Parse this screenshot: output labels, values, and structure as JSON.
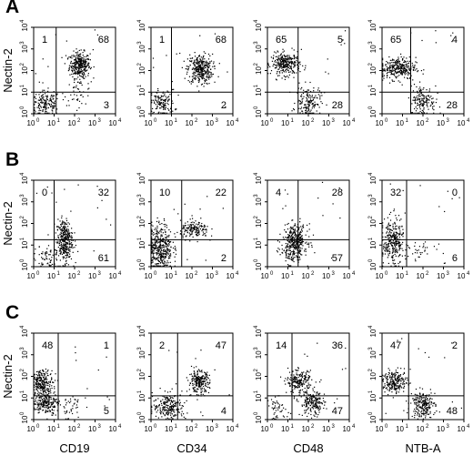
{
  "figure": {
    "columns": [
      "CD19",
      "CD34",
      "CD48",
      "NTB-A"
    ],
    "y_marker": "Nectin-2"
  },
  "axis": {
    "tick_labels": [
      "0",
      "1",
      "2",
      "3",
      "4"
    ],
    "tick_base": "10"
  },
  "chart_data": [
    {
      "type": "scatter",
      "panel": "A",
      "ylabel": "Nectin-2",
      "xlim": [
        0,
        4
      ],
      "ylim": [
        0,
        4
      ],
      "log_scale": true,
      "subplots": [
        {
          "xlabel": "CD19",
          "quadrants": {
            "ul": "1",
            "ur": "68",
            "lr": "3"
          },
          "gate": [
            1.1,
            1.0
          ],
          "clusters": [
            {
              "cx": 2.25,
              "cy": 2.25,
              "sx": 0.25,
              "sy": 0.3,
              "n": 320
            },
            {
              "cx": 0.6,
              "cy": 0.45,
              "sx": 0.35,
              "sy": 0.3,
              "n": 160
            },
            {
              "cx": 2.2,
              "cy": 1.0,
              "sx": 0.35,
              "sy": 0.3,
              "n": 40
            }
          ]
        },
        {
          "xlabel": "CD34",
          "quadrants": {
            "ul": "1",
            "ur": "68",
            "lr": "2"
          },
          "gate": [
            1.0,
            1.0
          ],
          "clusters": [
            {
              "cx": 2.4,
              "cy": 2.05,
              "sx": 0.3,
              "sy": 0.35,
              "n": 330
            },
            {
              "cx": 0.55,
              "cy": 0.5,
              "sx": 0.3,
              "sy": 0.3,
              "n": 140
            }
          ]
        },
        {
          "xlabel": "CD48",
          "quadrants": {
            "ul": "65",
            "ur": "5",
            "lr": "28"
          },
          "gate": [
            1.5,
            1.0
          ],
          "clusters": [
            {
              "cx": 0.9,
              "cy": 2.3,
              "sx": 0.35,
              "sy": 0.25,
              "n": 300
            },
            {
              "cx": 2.0,
              "cy": 0.55,
              "sx": 0.3,
              "sy": 0.35,
              "n": 150
            }
          ]
        },
        {
          "xlabel": "NTB-A",
          "quadrants": {
            "ul": "65",
            "ur": "4",
            "lr": "28"
          },
          "gate": [
            1.4,
            1.0
          ],
          "clusters": [
            {
              "cx": 0.75,
              "cy": 2.1,
              "sx": 0.45,
              "sy": 0.25,
              "n": 300
            },
            {
              "cx": 2.0,
              "cy": 0.6,
              "sx": 0.3,
              "sy": 0.35,
              "n": 150
            }
          ]
        }
      ]
    },
    {
      "type": "scatter",
      "panel": "B",
      "ylabel": "Nectin-2",
      "xlim": [
        0,
        4
      ],
      "ylim": [
        0,
        4
      ],
      "log_scale": true,
      "subplots": [
        {
          "xlabel": "CD19",
          "quadrants": {
            "ul": "0",
            "ur": "32",
            "lr": "61"
          },
          "gate": [
            1.0,
            1.25
          ],
          "clusters": [
            {
              "cx": 1.5,
              "cy": 1.2,
              "sx": 0.2,
              "sy": 0.5,
              "n": 330
            },
            {
              "cx": 0.6,
              "cy": 0.4,
              "sx": 0.3,
              "sy": 0.3,
              "n": 60
            }
          ]
        },
        {
          "xlabel": "CD34",
          "quadrants": {
            "ul": "10",
            "ur": "22",
            "lr": "2"
          },
          "gate": [
            1.5,
            1.25
          ],
          "clusters": [
            {
              "cx": 0.45,
              "cy": 0.9,
              "sx": 0.3,
              "sy": 0.55,
              "n": 400
            },
            {
              "cx": 2.15,
              "cy": 1.7,
              "sx": 0.35,
              "sy": 0.2,
              "n": 160
            }
          ]
        },
        {
          "xlabel": "CD48",
          "quadrants": {
            "ul": "4",
            "ur": "28",
            "lr": "57"
          },
          "gate": [
            1.5,
            1.25
          ],
          "clusters": [
            {
              "cx": 1.35,
              "cy": 1.25,
              "sx": 0.3,
              "sy": 0.35,
              "n": 300
            },
            {
              "cx": 1.2,
              "cy": 0.55,
              "sx": 0.3,
              "sy": 0.3,
              "n": 80
            }
          ]
        },
        {
          "xlabel": "NTB-A",
          "quadrants": {
            "ul": "32",
            "ur": "0",
            "lr": "6"
          },
          "gate": [
            1.2,
            1.25
          ],
          "clusters": [
            {
              "cx": 0.55,
              "cy": 1.15,
              "sx": 0.25,
              "sy": 0.55,
              "n": 290
            },
            {
              "cx": 1.9,
              "cy": 0.7,
              "sx": 0.3,
              "sy": 0.2,
              "n": 30
            }
          ]
        }
      ]
    },
    {
      "type": "scatter",
      "panel": "C",
      "ylabel": "Nectin-2",
      "xlim": [
        0,
        4
      ],
      "ylim": [
        0,
        4
      ],
      "log_scale": true,
      "subplots": [
        {
          "xlabel": "CD19",
          "quadrants": {
            "ul": "48",
            "ur": "1",
            "lr": "5"
          },
          "gate": [
            1.2,
            1.1
          ],
          "clusters": [
            {
              "cx": 0.45,
              "cy": 1.7,
              "sx": 0.25,
              "sy": 0.3,
              "n": 240
            },
            {
              "cx": 0.6,
              "cy": 0.75,
              "sx": 0.3,
              "sy": 0.25,
              "n": 200
            },
            {
              "cx": 1.8,
              "cy": 0.6,
              "sx": 0.3,
              "sy": 0.3,
              "n": 40
            }
          ]
        },
        {
          "xlabel": "CD34",
          "quadrants": {
            "ul": "2",
            "ur": "47",
            "lr": "4"
          },
          "gate": [
            1.3,
            1.1
          ],
          "clusters": [
            {
              "cx": 2.35,
              "cy": 1.75,
              "sx": 0.25,
              "sy": 0.25,
              "n": 230
            },
            {
              "cx": 0.9,
              "cy": 0.6,
              "sx": 0.4,
              "sy": 0.3,
              "n": 220
            }
          ]
        },
        {
          "xlabel": "CD48",
          "quadrants": {
            "ul": "14",
            "ur": "36",
            "lr": "47"
          },
          "gate": [
            1.2,
            1.1
          ],
          "clusters": [
            {
              "cx": 1.55,
              "cy": 1.75,
              "sx": 0.3,
              "sy": 0.25,
              "n": 200
            },
            {
              "cx": 2.2,
              "cy": 0.75,
              "sx": 0.3,
              "sy": 0.3,
              "n": 200
            },
            {
              "cx": 0.5,
              "cy": 0.5,
              "sx": 0.25,
              "sy": 0.25,
              "n": 50
            }
          ]
        },
        {
          "xlabel": "NTB-A",
          "quadrants": {
            "ul": "47",
            "ur": "2",
            "lr": "48"
          },
          "gate": [
            1.3,
            1.1
          ],
          "clusters": [
            {
              "cx": 0.65,
              "cy": 1.75,
              "sx": 0.3,
              "sy": 0.25,
              "n": 220
            },
            {
              "cx": 2.0,
              "cy": 0.7,
              "sx": 0.3,
              "sy": 0.3,
              "n": 220
            }
          ]
        }
      ]
    }
  ]
}
